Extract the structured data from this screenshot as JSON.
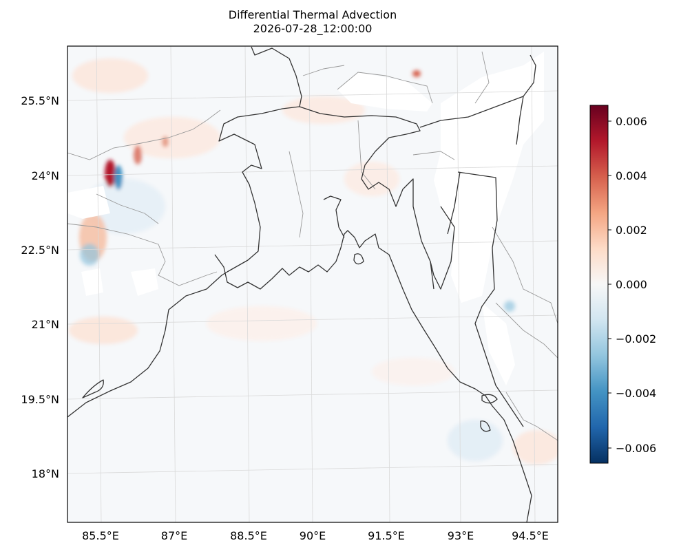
{
  "title_line1": "Differential Thermal Advection",
  "title_line2": "2026-07-28_12:00:00",
  "lat_labels": [
    "25.5°N",
    "24°N",
    "22.5°N",
    "21°N",
    "19.5°N",
    "18°N"
  ],
  "lon_labels": [
    "85.5°E",
    "87°E",
    "88.5°E",
    "90°E",
    "91.5°E",
    "93°E",
    "94.5°E"
  ],
  "colorbar": {
    "colormap": "RdBu_r",
    "range": [
      -0.0066,
      0.0066
    ],
    "ticks": [
      "0.006",
      "0.004",
      "0.002",
      "0.000",
      "−0.002",
      "−0.004",
      "−0.006"
    ],
    "colors": [
      "#67001f",
      "#b2182b",
      "#d6604d",
      "#f4a582",
      "#fddbc7",
      "#f7f7f7",
      "#d1e5f0",
      "#92c5de",
      "#4393c3",
      "#2166ac",
      "#053061"
    ]
  },
  "colors": {
    "coastline": "#333333",
    "borders": "#999999",
    "gridlines": "#d9d9d9",
    "ocean_tint": "#f4f7fa"
  }
}
